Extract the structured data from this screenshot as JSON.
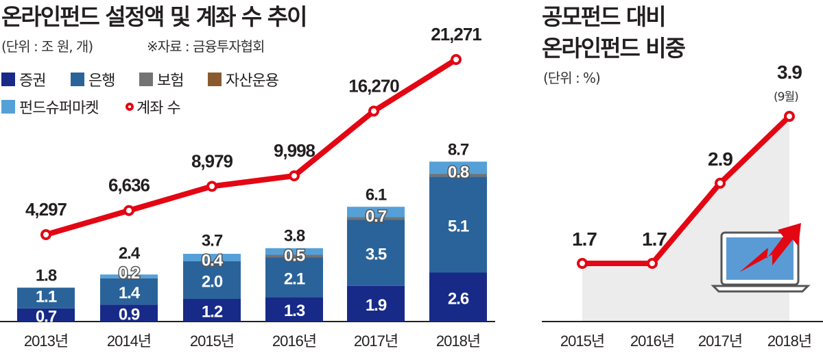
{
  "left": {
    "title": "온라인펀드 설정액 및 계좌 수 추이",
    "unit": "(단위 : 조 원, 개)",
    "source": "※자료 : 금융투자협회",
    "legend": [
      {
        "label": "증권",
        "color": "#172a87"
      },
      {
        "label": "은행",
        "color": "#2a6399"
      },
      {
        "label": "보험",
        "color": "#737373"
      },
      {
        "label": "자산운용",
        "color": "#8a5a2f"
      },
      {
        "label": "펀드슈퍼마켓",
        "color": "#56a0d8"
      },
      {
        "label": "계좌 수",
        "color": "#e30613"
      }
    ]
  },
  "right": {
    "title_line1": "공모펀드 대비",
    "title_line2": "온라인펀드 비중",
    "unit": "(단위 : %)",
    "note": "(9월)"
  },
  "chart_data": [
    {
      "type": "bar",
      "stacked": true,
      "title": "온라인펀드 설정액 및 계좌 수 추이",
      "categories": [
        "2013년",
        "2014년",
        "2015년",
        "2016년",
        "2017년",
        "2018년"
      ],
      "series": [
        {
          "name": "증권",
          "values": [
            0.7,
            0.9,
            1.2,
            1.3,
            1.9,
            2.6
          ]
        },
        {
          "name": "은행",
          "values": [
            1.1,
            1.4,
            2.0,
            2.1,
            3.5,
            5.1
          ]
        },
        {
          "name": "보험·펀드슈퍼마켓 등",
          "values": [
            null,
            0.2,
            0.4,
            0.5,
            0.7,
            0.8
          ]
        }
      ],
      "totals": [
        "1.8",
        "2.4",
        "3.7",
        "3.8",
        "6.1",
        "8.7"
      ],
      "segment_labels": [
        [
          "0.7",
          "1.1",
          ""
        ],
        [
          "0.9",
          "1.4",
          "0.2"
        ],
        [
          "1.2",
          "2.0",
          "0.4"
        ],
        [
          "1.3",
          "2.1",
          "0.5"
        ],
        [
          "1.9",
          "3.5",
          "0.7"
        ],
        [
          "2.6",
          "5.1",
          "0.8"
        ]
      ],
      "line": {
        "name": "계좌 수",
        "values": [
          4297,
          6636,
          8979,
          9998,
          16270,
          21271
        ],
        "labels": [
          "4,297",
          "6,636",
          "8,979",
          "9,998",
          "16,270",
          "21,271"
        ]
      },
      "ylim": [
        0,
        8.7
      ]
    },
    {
      "type": "line",
      "title": "공모펀드 대비 온라인펀드 비중",
      "categories": [
        "2015년",
        "2016년",
        "2017년",
        "2018년"
      ],
      "values": [
        1.7,
        1.7,
        2.9,
        3.9
      ],
      "labels": [
        "1.7",
        "1.7",
        "2.9",
        "3.9"
      ],
      "ylabel": "%"
    }
  ]
}
